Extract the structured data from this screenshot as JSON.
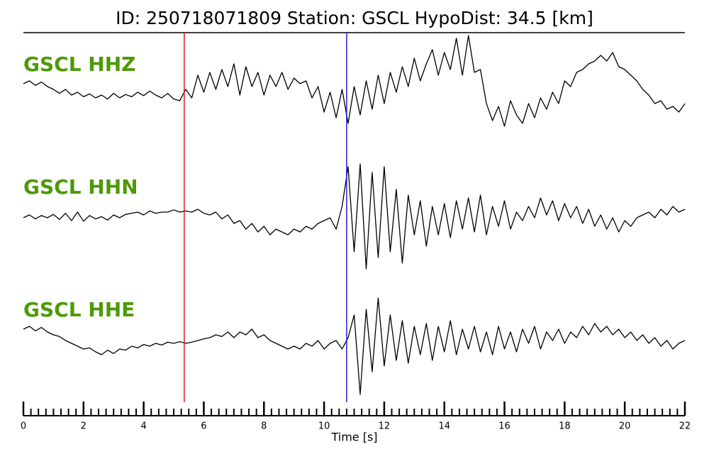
{
  "chart_data": {
    "type": "line",
    "title": "ID: 250718071809   Station: GSCL   HypoDist:    34.5 [km]",
    "xlabel": "Time [s]",
    "xlim": [
      0,
      22
    ],
    "xticks": [
      0,
      2,
      4,
      6,
      8,
      10,
      12,
      14,
      16,
      18,
      20,
      22
    ],
    "xminorticks": [
      0,
      0.25,
      0.5,
      0.75,
      1,
      1.25,
      1.5,
      1.75,
      2,
      2.25,
      2.5,
      2.75,
      3,
      3.25,
      3.5,
      3.75,
      4,
      4.25,
      4.5,
      4.75,
      5,
      5.25,
      5.5,
      5.75,
      6,
      6.25,
      6.5,
      6.75,
      7,
      7.25,
      7.5,
      7.75,
      8,
      8.25,
      8.5,
      8.75,
      9,
      9.25,
      9.5,
      9.75,
      10,
      10.25,
      10.5,
      10.75,
      11,
      11.25,
      11.5,
      11.75,
      12,
      12.25,
      12.5,
      12.75,
      13,
      13.25,
      13.5,
      13.75,
      14,
      14.25,
      14.5,
      14.75,
      15,
      15.25,
      15.5,
      15.75,
      16,
      16.25,
      16.5,
      16.75,
      17,
      17.25,
      17.5,
      17.75,
      18,
      18.25,
      18.5,
      18.75,
      19,
      19.25,
      19.5,
      19.75,
      20,
      20.25,
      20.5,
      20.75,
      21,
      21.25,
      21.5,
      21.75,
      22
    ],
    "ylim": [
      -1,
      1
    ],
    "label_color": "#4e9a06",
    "markers": [
      {
        "x": 5.35,
        "color": "#e31a1c"
      },
      {
        "x": 10.75,
        "color": "#1f1fd6"
      }
    ],
    "x": [
      0,
      0.2,
      0.4,
      0.6,
      0.8,
      1,
      1.2,
      1.4,
      1.6,
      1.8,
      2,
      2.2,
      2.4,
      2.6,
      2.8,
      3,
      3.2,
      3.4,
      3.6,
      3.8,
      4,
      4.2,
      4.4,
      4.6,
      4.8,
      5,
      5.2,
      5.4,
      5.6,
      5.8,
      6,
      6.2,
      6.4,
      6.6,
      6.8,
      7,
      7.2,
      7.4,
      7.6,
      7.8,
      8,
      8.2,
      8.4,
      8.6,
      8.8,
      9,
      9.2,
      9.4,
      9.6,
      9.8,
      10,
      10.2,
      10.4,
      10.6,
      10.8,
      11,
      11.2,
      11.4,
      11.6,
      11.8,
      12,
      12.2,
      12.4,
      12.6,
      12.8,
      13,
      13.2,
      13.4,
      13.6,
      13.8,
      14,
      14.2,
      14.4,
      14.6,
      14.8,
      15,
      15.2,
      15.4,
      15.6,
      15.8,
      16,
      16.2,
      16.4,
      16.6,
      16.8,
      17,
      17.2,
      17.4,
      17.6,
      17.8,
      18,
      18.2,
      18.4,
      18.6,
      18.8,
      19,
      19.2,
      19.4,
      19.6,
      19.8,
      20,
      20.2,
      20.4,
      20.6,
      20.8,
      21,
      21.2,
      21.4,
      21.6,
      21.8,
      22
    ],
    "series": [
      {
        "name": "GSCL HHZ",
        "color": "#000000",
        "values": [
          0.15,
          0.2,
          0.12,
          0.18,
          0.1,
          0.05,
          -0.02,
          0.05,
          -0.05,
          0.0,
          -0.08,
          -0.03,
          -0.1,
          -0.05,
          -0.12,
          -0.02,
          -0.1,
          -0.04,
          -0.08,
          0.0,
          -0.06,
          0.02,
          -0.05,
          -0.1,
          -0.02,
          -0.12,
          -0.15,
          0.05,
          -0.1,
          0.3,
          0.0,
          0.35,
          0.05,
          0.4,
          0.1,
          0.5,
          -0.05,
          0.45,
          0.1,
          0.35,
          -0.05,
          0.3,
          0.1,
          0.35,
          0.05,
          0.25,
          0.15,
          0.2,
          -0.1,
          0.1,
          -0.35,
          0.0,
          -0.45,
          0.05,
          -0.55,
          0.1,
          -0.4,
          0.2,
          -0.3,
          0.3,
          -0.2,
          0.35,
          0.0,
          0.45,
          0.1,
          0.6,
          0.2,
          0.5,
          0.75,
          0.3,
          0.7,
          0.4,
          0.95,
          0.3,
          1.0,
          0.35,
          0.4,
          -0.2,
          -0.5,
          -0.25,
          -0.6,
          -0.15,
          -0.4,
          -0.55,
          -0.2,
          -0.45,
          -0.1,
          -0.3,
          0.0,
          -0.2,
          0.2,
          0.1,
          0.35,
          0.4,
          0.5,
          0.55,
          0.65,
          0.55,
          0.7,
          0.45,
          0.4,
          0.3,
          0.2,
          0.05,
          -0.05,
          -0.2,
          -0.15,
          -0.3,
          -0.25,
          -0.35,
          -0.2
        ]
      },
      {
        "name": "GSCL HHN",
        "color": "#000000",
        "values": [
          0.0,
          0.05,
          -0.02,
          0.04,
          0.0,
          0.06,
          -0.03,
          0.08,
          -0.05,
          0.1,
          -0.06,
          0.04,
          -0.02,
          0.02,
          -0.04,
          0.05,
          0.0,
          0.06,
          0.08,
          0.1,
          0.05,
          0.12,
          0.08,
          0.1,
          0.1,
          0.14,
          0.1,
          0.12,
          0.1,
          0.15,
          0.08,
          0.05,
          0.1,
          -0.02,
          0.05,
          -0.1,
          -0.05,
          -0.2,
          -0.1,
          -0.25,
          -0.15,
          -0.3,
          -0.2,
          -0.25,
          -0.3,
          -0.2,
          -0.25,
          -0.15,
          -0.2,
          -0.1,
          -0.05,
          0.0,
          -0.2,
          0.2,
          0.9,
          -0.6,
          0.95,
          -0.9,
          0.8,
          -0.7,
          0.9,
          -0.6,
          0.5,
          -0.8,
          0.4,
          -0.3,
          0.3,
          -0.5,
          0.2,
          -0.3,
          0.25,
          -0.35,
          0.3,
          -0.2,
          0.35,
          -0.25,
          0.4,
          -0.3,
          0.2,
          -0.15,
          0.3,
          -0.2,
          0.1,
          -0.05,
          0.2,
          0.0,
          0.35,
          0.05,
          0.3,
          -0.05,
          0.25,
          0.0,
          0.2,
          -0.1,
          0.15,
          -0.15,
          0.05,
          -0.2,
          0.0,
          -0.25,
          -0.05,
          -0.15,
          0.0,
          0.05,
          0.1,
          0.0,
          0.15,
          0.05,
          0.2,
          0.1,
          0.15
        ]
      },
      {
        "name": "GSCL HHE",
        "color": "#000000",
        "values": [
          0.25,
          0.3,
          0.22,
          0.28,
          0.2,
          0.15,
          0.12,
          0.05,
          0.0,
          -0.05,
          -0.1,
          -0.08,
          -0.15,
          -0.2,
          -0.12,
          -0.18,
          -0.1,
          -0.12,
          -0.05,
          -0.08,
          -0.02,
          -0.05,
          0.0,
          -0.03,
          0.02,
          0.0,
          0.03,
          0.0,
          0.02,
          0.05,
          0.08,
          0.1,
          0.15,
          0.12,
          0.2,
          0.1,
          0.2,
          0.15,
          0.25,
          0.1,
          0.15,
          0.05,
          0.0,
          -0.05,
          -0.1,
          -0.05,
          -0.1,
          0.0,
          -0.05,
          0.05,
          -0.1,
          0.0,
          0.05,
          -0.1,
          0.1,
          0.5,
          -0.9,
          0.6,
          -0.5,
          0.8,
          -0.4,
          0.5,
          -0.3,
          0.4,
          -0.35,
          0.3,
          -0.2,
          0.35,
          -0.3,
          0.3,
          -0.15,
          0.4,
          -0.2,
          0.25,
          -0.1,
          0.3,
          -0.15,
          0.2,
          -0.2,
          0.3,
          -0.1,
          0.2,
          -0.15,
          0.25,
          0.0,
          0.3,
          -0.1,
          0.2,
          0.05,
          0.25,
          0.0,
          0.2,
          0.1,
          0.3,
          0.15,
          0.35,
          0.2,
          0.3,
          0.15,
          0.25,
          0.1,
          0.2,
          0.05,
          0.15,
          0.0,
          0.1,
          -0.05,
          0.05,
          -0.1,
          0.0,
          0.05
        ]
      }
    ]
  }
}
